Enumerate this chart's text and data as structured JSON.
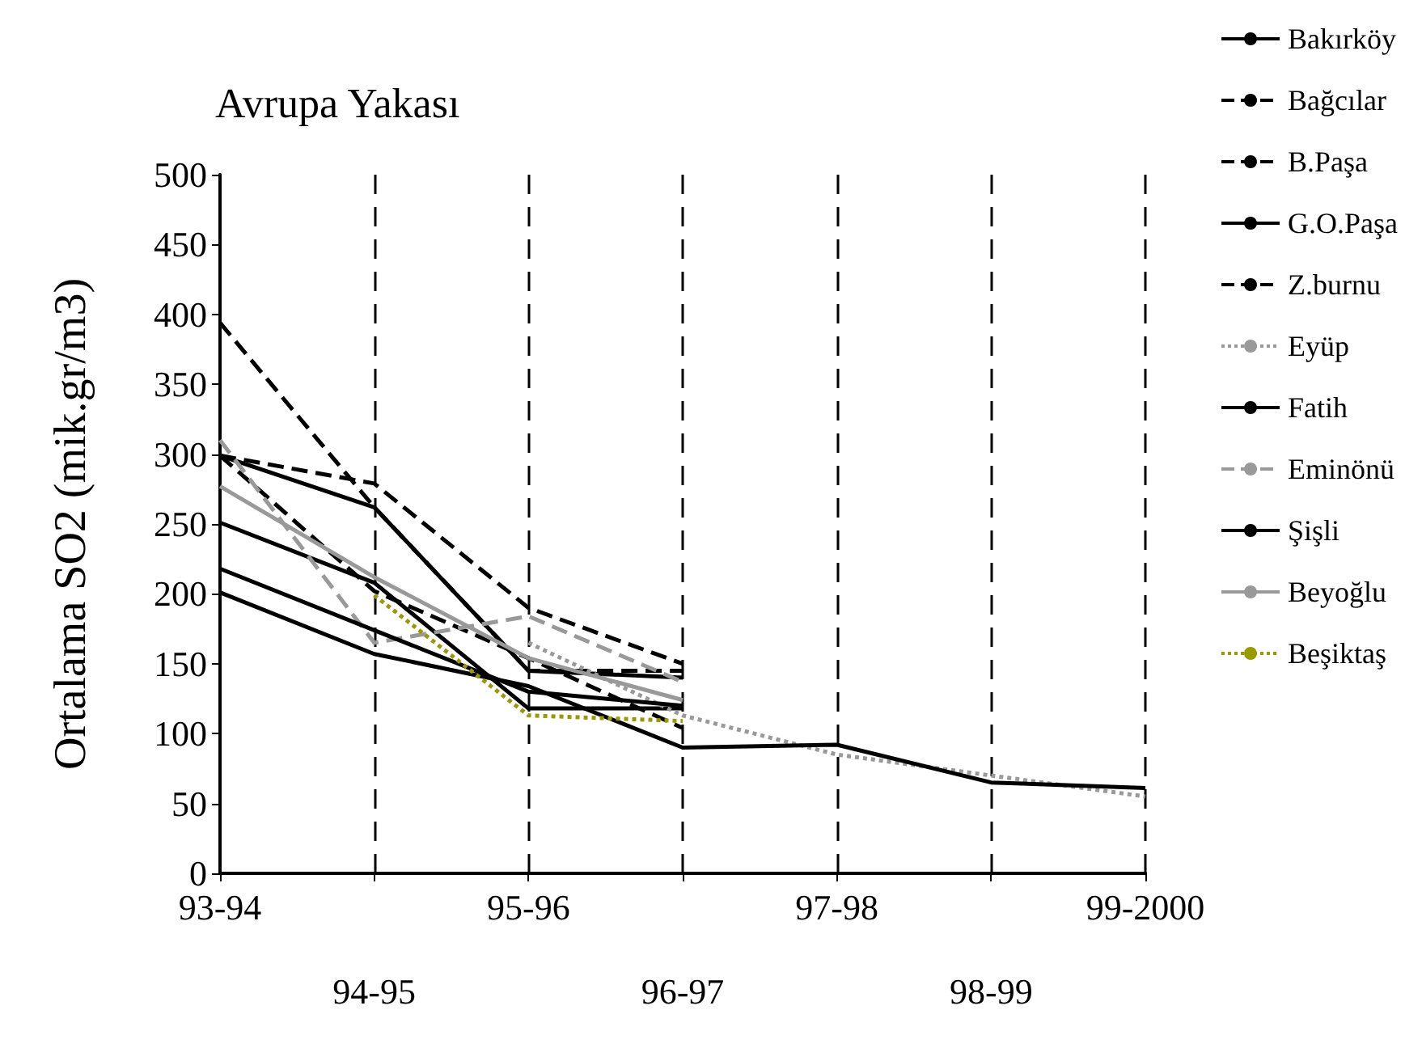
{
  "chart_data": {
    "type": "line",
    "title": "Avrupa Yakası",
    "ylabel": "Ortalama SO2 (mik.gr/m3)",
    "categories": [
      "93-94",
      "94-95",
      "95-96",
      "96-97",
      "97-98",
      "98-99",
      "99-2000"
    ],
    "ylim": [
      0,
      500
    ],
    "yticks": [
      0,
      50,
      100,
      150,
      200,
      250,
      300,
      350,
      400,
      450,
      500
    ],
    "grid": "x",
    "legend": "right",
    "marker": "none",
    "series": [
      {
        "name": "Bakırköy",
        "color": "#000000",
        "line_style": "solid",
        "values": [
          251,
          208,
          118,
          118,
          null,
          null,
          null
        ]
      },
      {
        "name": "Bağcılar",
        "color": "#000000",
        "line_style": "dashed",
        "values": [
          394,
          262,
          145,
          145,
          null,
          null,
          null
        ]
      },
      {
        "name": "B.Paşa",
        "color": "#000000",
        "line_style": "dashed",
        "values": [
          299,
          279,
          190,
          150,
          null,
          null,
          null
        ]
      },
      {
        "name": "G.O.Paşa",
        "color": "#000000",
        "line_style": "solid",
        "values": [
          299,
          262,
          145,
          140,
          null,
          null,
          null
        ]
      },
      {
        "name": "Z.burnu",
        "color": "#000000",
        "line_style": "dashed",
        "values": [
          299,
          202,
          154,
          104,
          null,
          null,
          null
        ]
      },
      {
        "name": "Eyüp",
        "color": "#999999",
        "line_style": "dotted",
        "values": [
          null,
          null,
          165,
          113,
          85,
          70,
          55
        ]
      },
      {
        "name": "Fatih",
        "color": "#000000",
        "line_style": "solid",
        "values": [
          201,
          157,
          134,
          90,
          92,
          65,
          61
        ]
      },
      {
        "name": "Eminönü",
        "color": "#999999",
        "line_style": "dashed",
        "values": [
          310,
          165,
          184,
          137,
          null,
          null,
          null
        ]
      },
      {
        "name": "Şişli",
        "color": "#000000",
        "line_style": "solid",
        "values": [
          218,
          174,
          130,
          120,
          null,
          null,
          null
        ]
      },
      {
        "name": "Beyoğlu",
        "color": "#999999",
        "line_style": "solid",
        "values": [
          277,
          212,
          154,
          124,
          null,
          null,
          null
        ]
      },
      {
        "name": "Beşiktaş",
        "color": "#999900",
        "line_style": "dotted",
        "values": [
          null,
          199,
          113,
          109,
          null,
          null,
          null
        ]
      }
    ]
  }
}
